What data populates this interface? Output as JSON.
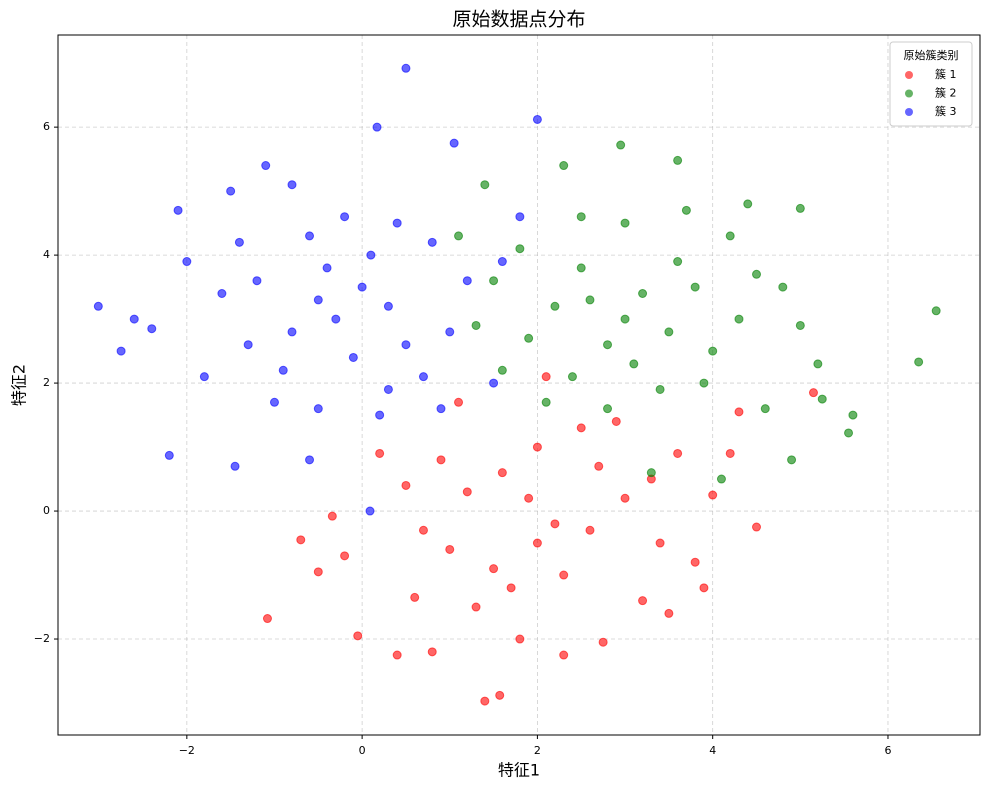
{
  "chart_data": {
    "type": "scatter",
    "title": "原始数据点分布",
    "x_label": "特征1",
    "y_label": "特征2",
    "xlim": [
      -3.47,
      7.05
    ],
    "ylim": [
      -3.5,
      7.44
    ],
    "xticks": [
      {
        "value": -2,
        "label": "−2"
      },
      0,
      2,
      4,
      6
    ],
    "yticks": [
      {
        "value": -2,
        "label": "−2"
      },
      0,
      2,
      4,
      6
    ],
    "grid": true,
    "legend_title": "原始簇类别",
    "legend_position": "upper-right",
    "series": [
      {
        "name": "簇 1",
        "color": "#ff0000",
        "x": [
          1.57,
          1.4,
          -1.08,
          -0.34,
          4.5,
          5.15,
          0.8,
          0.4,
          -0.05,
          0.6,
          1.0,
          1.5,
          2.0,
          2.3,
          2.6,
          3.0,
          3.3,
          3.8,
          3.9,
          4.0,
          4.2,
          4.3,
          2.5,
          2.0,
          1.6,
          1.2,
          0.9,
          0.5,
          0.2,
          -0.2,
          -0.5,
          -0.7,
          1.8,
          2.3,
          2.75,
          3.2,
          3.5,
          2.2,
          1.9,
          2.7,
          3.4,
          1.3,
          0.7,
          1.1,
          2.1,
          2.9,
          3.6,
          1.7
        ],
        "y": [
          -2.88,
          -2.97,
          -1.68,
          -0.08,
          -0.25,
          1.85,
          -2.2,
          -2.25,
          -1.95,
          -1.35,
          -0.6,
          -0.9,
          -0.5,
          -1.0,
          -0.3,
          0.2,
          0.5,
          -0.8,
          -1.2,
          0.25,
          0.9,
          1.55,
          1.3,
          1.0,
          0.6,
          0.3,
          0.8,
          0.4,
          0.9,
          -0.7,
          -0.95,
          -0.45,
          -2.0,
          -2.25,
          -2.05,
          -1.4,
          -1.6,
          -0.2,
          0.2,
          0.7,
          -0.5,
          -1.5,
          -0.3,
          1.7,
          2.1,
          1.4,
          0.9,
          -1.2
        ]
      },
      {
        "name": "簇 2",
        "color": "#008000",
        "x": [
          6.55,
          6.35,
          5.6,
          5.55,
          4.9,
          2.95,
          3.6,
          1.1,
          5.0,
          3.0,
          3.2,
          2.8,
          3.5,
          3.8,
          2.5,
          2.2,
          1.9,
          2.4,
          3.1,
          4.0,
          4.3,
          4.5,
          4.2,
          3.7,
          3.0,
          2.5,
          1.8,
          1.5,
          1.3,
          1.6,
          2.1,
          2.8,
          3.4,
          4.6,
          5.2,
          5.0,
          4.8,
          4.1,
          3.3,
          4.4,
          2.3,
          1.4,
          3.9,
          2.6,
          3.6,
          5.25
        ],
        "y": [
          3.13,
          2.33,
          1.5,
          1.22,
          0.8,
          5.72,
          5.48,
          4.3,
          4.73,
          3.0,
          3.4,
          2.6,
          2.8,
          3.5,
          3.8,
          3.2,
          2.7,
          2.1,
          2.3,
          2.5,
          3.0,
          3.7,
          4.3,
          4.7,
          4.5,
          4.6,
          4.1,
          3.6,
          2.9,
          2.2,
          1.7,
          1.6,
          1.9,
          1.6,
          2.3,
          2.9,
          3.5,
          0.5,
          0.6,
          4.8,
          5.4,
          5.1,
          2.0,
          3.3,
          3.9,
          1.75
        ]
      },
      {
        "name": "簇 3",
        "color": "#0000ff",
        "x": [
          -3.01,
          -2.2,
          0.5,
          2.0,
          0.17,
          -1.1,
          -2.75,
          0.09,
          -1.45,
          -2.6,
          -2.4,
          -2.1,
          -1.5,
          -0.8,
          1.05,
          -0.5,
          -0.3,
          0.0,
          0.3,
          -0.8,
          -1.2,
          -1.6,
          -1.8,
          -1.0,
          -0.5,
          0.3,
          0.7,
          1.0,
          1.2,
          0.8,
          0.4,
          -0.2,
          -0.6,
          -1.4,
          -2.0,
          -0.9,
          -0.1,
          0.5,
          0.9,
          1.5,
          1.8,
          1.6,
          -0.6,
          0.2,
          -1.3,
          -0.4,
          0.1
        ],
        "y": [
          3.2,
          0.87,
          6.92,
          6.12,
          6.0,
          5.4,
          2.5,
          0.0,
          0.7,
          3.0,
          2.85,
          4.7,
          5.0,
          5.1,
          5.75,
          3.3,
          3.0,
          3.5,
          3.2,
          2.8,
          3.6,
          3.4,
          2.1,
          1.7,
          1.6,
          1.9,
          2.1,
          2.8,
          3.6,
          4.2,
          4.5,
          4.6,
          4.3,
          4.2,
          3.9,
          2.2,
          2.4,
          2.6,
          1.6,
          2.0,
          4.6,
          3.9,
          0.8,
          1.5,
          2.6,
          3.8,
          4.0
        ]
      }
    ]
  }
}
